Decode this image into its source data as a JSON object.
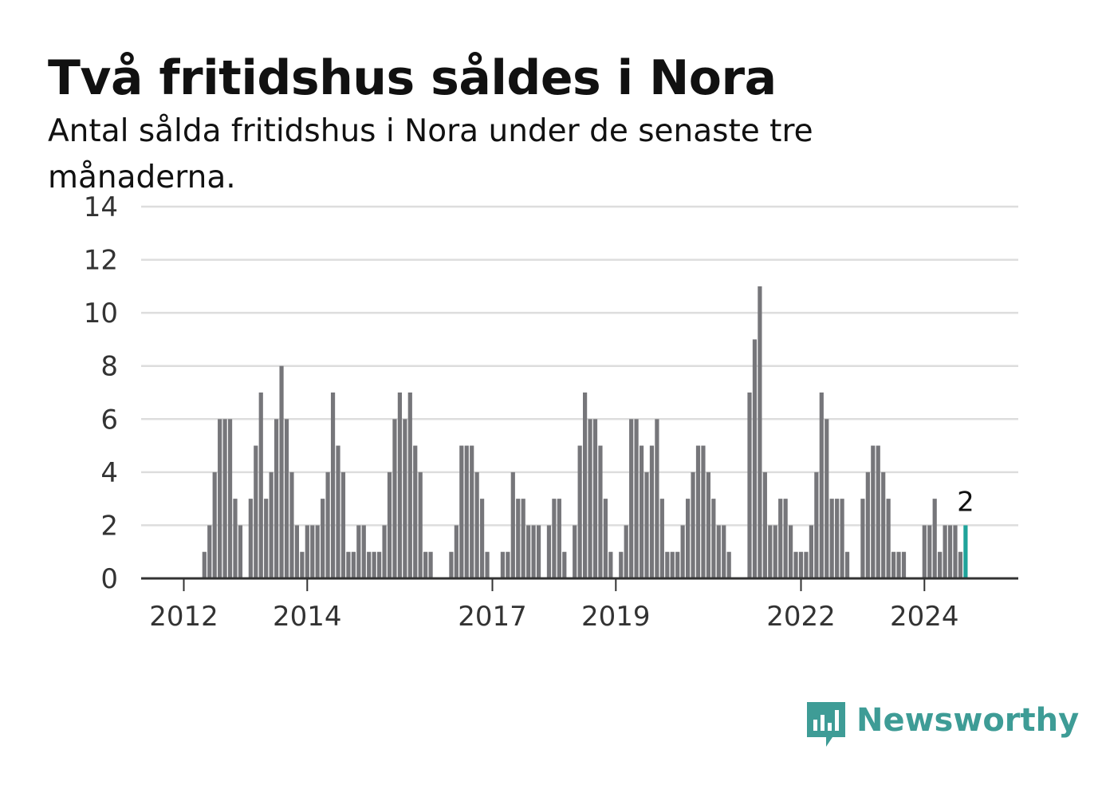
{
  "header": {
    "title": "Två fritidshus såldes i Nora",
    "subtitle": "Antal sålda fritidshus i Nora under de senaste tre månaderna."
  },
  "brand": {
    "name": "Newsworthy",
    "color": "#3e9c96",
    "icon": "newsworthy-logo-icon"
  },
  "colors": {
    "bar": "#76767a",
    "highlight": "#1fa39a",
    "grid": "#dddddd",
    "axis": "#333333"
  },
  "chart_data": {
    "type": "bar",
    "title": "Två fritidshus såldes i Nora",
    "subtitle": "Antal sålda fritidshus i Nora under de senaste tre månaderna.",
    "xlabel": "",
    "ylabel": "",
    "ylim": [
      0,
      14
    ],
    "yticks": [
      0,
      2,
      4,
      6,
      8,
      10,
      12,
      14
    ],
    "xticks": [
      {
        "label": "2012",
        "index": 0
      },
      {
        "label": "2014",
        "index": 24
      },
      {
        "label": "2017",
        "index": 60
      },
      {
        "label": "2019",
        "index": 84
      },
      {
        "label": "2022",
        "index": 120
      },
      {
        "label": "2024",
        "index": 144
      }
    ],
    "grid": true,
    "period": "monthly, rolling three-month total",
    "values": [
      0,
      0,
      0,
      0,
      1,
      2,
      4,
      6,
      6,
      6,
      3,
      2,
      0,
      3,
      5,
      7,
      3,
      4,
      6,
      8,
      6,
      4,
      2,
      1,
      2,
      2,
      2,
      3,
      4,
      7,
      5,
      4,
      1,
      1,
      2,
      2,
      1,
      1,
      1,
      2,
      4,
      6,
      7,
      6,
      7,
      5,
      4,
      1,
      1,
      0,
      0,
      0,
      1,
      2,
      5,
      5,
      5,
      4,
      3,
      1,
      0,
      0,
      1,
      1,
      4,
      3,
      3,
      2,
      2,
      2,
      0,
      2,
      3,
      3,
      1,
      0,
      2,
      5,
      7,
      6,
      6,
      5,
      3,
      1,
      0,
      1,
      2,
      6,
      6,
      5,
      4,
      5,
      6,
      3,
      1,
      1,
      1,
      2,
      3,
      4,
      5,
      5,
      4,
      3,
      2,
      2,
      1,
      0,
      0,
      0,
      7,
      9,
      11,
      4,
      2,
      2,
      3,
      3,
      2,
      1,
      1,
      1,
      2,
      4,
      7,
      6,
      3,
      3,
      3,
      1,
      0,
      0,
      3,
      4,
      5,
      5,
      4,
      3,
      1,
      1,
      1,
      0,
      0,
      0,
      2,
      2,
      3,
      1,
      2,
      2,
      2,
      1,
      2
    ],
    "highlight": {
      "index": 152,
      "label": "2"
    }
  }
}
